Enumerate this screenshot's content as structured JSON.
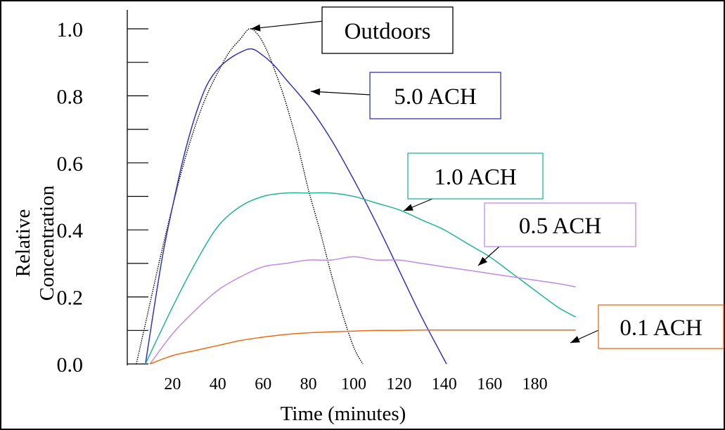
{
  "chart_data": {
    "type": "line",
    "xlabel": "Time (minutes)",
    "ylabel_lines": [
      "Relative",
      "Concentration"
    ],
    "xlim": [
      0,
      200
    ],
    "ylim": [
      0,
      1.0
    ],
    "x_ticks": [
      20,
      40,
      60,
      80,
      100,
      120,
      140,
      160,
      180
    ],
    "y_ticks": [
      "0.0",
      "0.2",
      "0.4",
      "0.6",
      "0.8",
      "1.0"
    ],
    "grid": false,
    "series": [
      {
        "name": "Outdoors",
        "color": "#000000",
        "style": "dotted",
        "x": [
          4,
          10,
          15,
          20,
          25,
          30,
          35,
          40,
          45,
          50,
          54,
          58,
          62,
          66,
          70,
          75,
          80,
          85,
          90,
          95,
          100,
          104
        ],
        "y": [
          0.0,
          0.18,
          0.33,
          0.47,
          0.6,
          0.71,
          0.8,
          0.87,
          0.93,
          0.97,
          1.0,
          0.98,
          0.93,
          0.86,
          0.78,
          0.66,
          0.52,
          0.4,
          0.27,
          0.15,
          0.05,
          0.0
        ]
      },
      {
        "name": "5.0 ACH",
        "color": "#3333bb",
        "style": "solid",
        "x": [
          8,
          15,
          20,
          25,
          30,
          35,
          40,
          45,
          50,
          55,
          60,
          65,
          70,
          80,
          90,
          100,
          110,
          120,
          130,
          141
        ],
        "y": [
          0.0,
          0.3,
          0.47,
          0.62,
          0.74,
          0.83,
          0.88,
          0.91,
          0.93,
          0.94,
          0.92,
          0.89,
          0.85,
          0.77,
          0.67,
          0.55,
          0.42,
          0.28,
          0.14,
          0.0
        ]
      },
      {
        "name": "1.0 ACH",
        "color": "#1fb597",
        "style": "solid",
        "x": [
          8,
          20,
          30,
          40,
          50,
          60,
          70,
          80,
          90,
          100,
          110,
          120,
          130,
          140,
          150,
          160,
          170,
          180,
          190,
          198
        ],
        "y": [
          0.0,
          0.17,
          0.3,
          0.41,
          0.47,
          0.5,
          0.51,
          0.51,
          0.51,
          0.5,
          0.48,
          0.46,
          0.43,
          0.4,
          0.36,
          0.32,
          0.27,
          0.22,
          0.17,
          0.14
        ]
      },
      {
        "name": "0.5 ACH",
        "color": "#c08ae6",
        "style": "solid",
        "x": [
          10,
          20,
          30,
          40,
          50,
          60,
          70,
          80,
          90,
          100,
          110,
          120,
          130,
          140,
          150,
          160,
          170,
          180,
          190,
          198
        ],
        "y": [
          0.0,
          0.09,
          0.16,
          0.22,
          0.26,
          0.29,
          0.3,
          0.31,
          0.31,
          0.32,
          0.31,
          0.31,
          0.3,
          0.29,
          0.28,
          0.27,
          0.26,
          0.25,
          0.24,
          0.23
        ]
      },
      {
        "name": "0.1 ACH",
        "color": "#ef6a10",
        "style": "solid",
        "x": [
          10,
          20,
          30,
          40,
          50,
          60,
          70,
          80,
          90,
          100,
          110,
          120,
          130,
          140,
          150,
          160,
          170,
          180,
          190,
          198
        ],
        "y": [
          0.0,
          0.025,
          0.04,
          0.055,
          0.07,
          0.08,
          0.088,
          0.093,
          0.096,
          0.098,
          0.1,
          0.1,
          0.101,
          0.101,
          0.101,
          0.101,
          0.101,
          0.101,
          0.101,
          0.101
        ]
      }
    ],
    "annotations": [
      {
        "text": "Outdoors",
        "series": "Outdoors",
        "border_color": "#000000"
      },
      {
        "text": "5.0 ACH",
        "series": "5.0 ACH",
        "border_color": "#3333bb"
      },
      {
        "text": "1.0 ACH",
        "series": "1.0 ACH",
        "border_color": "#1fb597"
      },
      {
        "text": "0.5 ACH",
        "series": "0.5 ACH",
        "border_color": "#c08ae6"
      },
      {
        "text": "0.1 ACH",
        "series": "0.1 ACH",
        "border_color": "#ef6a10"
      }
    ]
  }
}
